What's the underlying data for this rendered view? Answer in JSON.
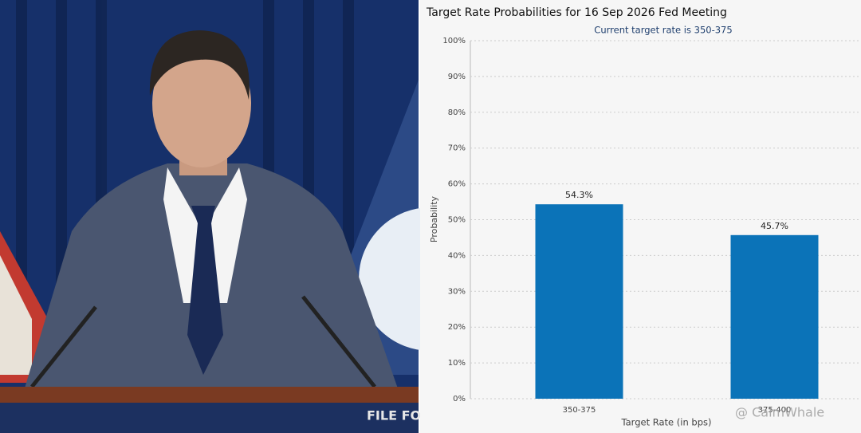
{
  "photo": {
    "podium_text": "FILE FO"
  },
  "chart_data": {
    "type": "bar",
    "title": "Target Rate Probabilities for 16 Sep 2026 Fed Meeting",
    "subtitle": "Current target rate is 350-375",
    "x_label": "Target Rate (in bps)",
    "y_label": "Probability",
    "categories": [
      "350-375",
      "375-400"
    ],
    "values": [
      54.3,
      45.7
    ],
    "value_labels": [
      "54.3%",
      "45.7%"
    ],
    "color": "#0b73b8",
    "ylim": [
      0,
      100
    ],
    "yticks": [
      {
        "value": 0,
        "label": "0%"
      },
      {
        "value": 10,
        "label": "10%"
      },
      {
        "value": 20,
        "label": "20%"
      },
      {
        "value": 30,
        "label": "30%"
      },
      {
        "value": 40,
        "label": "40%"
      },
      {
        "value": 50,
        "label": "50%"
      },
      {
        "value": 60,
        "label": "60%"
      },
      {
        "value": 70,
        "label": "70%"
      },
      {
        "value": 80,
        "label": "80%"
      },
      {
        "value": 90,
        "label": "90%"
      },
      {
        "value": 100,
        "label": "100%"
      }
    ],
    "grid": true,
    "watermark": "@ CalmWhale"
  }
}
